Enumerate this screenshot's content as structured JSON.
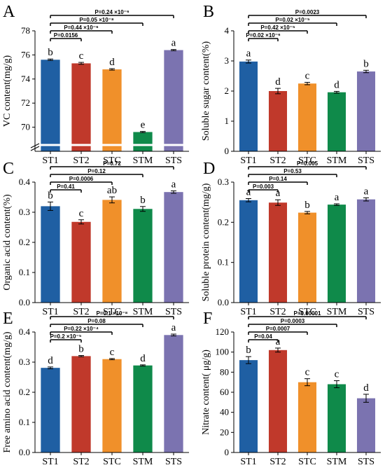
{
  "chart_data": [
    {
      "panel": "A",
      "type": "bar",
      "categories": [
        "ST1",
        "ST2",
        "STC",
        "STM",
        "STS"
      ],
      "values": [
        75.6,
        75.3,
        74.8,
        69.6,
        76.4
      ],
      "errors": [
        0.06,
        0.08,
        0.06,
        0.05,
        0.05
      ],
      "letters": [
        "b",
        "c",
        "d",
        "e",
        "a"
      ],
      "ylabel": "VC content(mg/g)",
      "ylim": [
        68,
        78
      ],
      "yticks": [
        "70",
        "72",
        "74",
        "76",
        "78"
      ],
      "axis_break": true,
      "comparisons": [
        {
          "target": 4,
          "label": "P=0.24 ×10⁻⁶"
        },
        {
          "target": 3,
          "label": "P=0.05 ×10⁻⁸"
        },
        {
          "target": 2,
          "label": "P=0.44 ×10⁻⁶"
        },
        {
          "target": 1,
          "label": "P=0.0156"
        }
      ]
    },
    {
      "panel": "B",
      "type": "bar",
      "categories": [
        "ST1",
        "ST2",
        "STC",
        "STM",
        "STS"
      ],
      "values": [
        2.98,
        2.0,
        2.25,
        1.96,
        2.65
      ],
      "errors": [
        0.05,
        0.09,
        0.04,
        0.03,
        0.04
      ],
      "letters": [
        "a",
        "d",
        "c",
        "d",
        "b"
      ],
      "ylabel": "Soluble sugar content(%)",
      "ylim": [
        0,
        4
      ],
      "yticks": [
        "0",
        "1",
        "2",
        "3",
        "4"
      ],
      "comparisons": [
        {
          "target": 4,
          "label": "P=0.0023"
        },
        {
          "target": 3,
          "label": "P=0.02 ×10⁻⁵"
        },
        {
          "target": 2,
          "label": "P=0.42 ×10⁻⁵"
        },
        {
          "target": 1,
          "label": "P=0.02 ×10⁻⁶"
        }
      ]
    },
    {
      "panel": "C",
      "type": "bar",
      "categories": [
        "ST1",
        "ST2",
        "STC",
        "STM",
        "STS"
      ],
      "values": [
        0.32,
        0.268,
        0.341,
        0.311,
        0.367
      ],
      "errors": [
        0.014,
        0.007,
        0.01,
        0.008,
        0.004
      ],
      "letters": [
        "b",
        "c",
        "ab",
        "b",
        "a"
      ],
      "ylabel": "Organic acid content(%)",
      "ylim": [
        0,
        0.4
      ],
      "yticks": [
        "0.0",
        "0.1",
        "0.2",
        "0.3",
        "0.4"
      ],
      "comparisons": [
        {
          "target": 4,
          "label": "P=0.72"
        },
        {
          "target": 3,
          "label": "P=0.12"
        },
        {
          "target": 2,
          "label": "P=0.0006"
        },
        {
          "target": 1,
          "label": "P=0.41"
        }
      ]
    },
    {
      "panel": "D",
      "type": "bar",
      "categories": [
        "ST1",
        "ST2",
        "STC",
        "STM",
        "STS"
      ],
      "values": [
        0.255,
        0.249,
        0.224,
        0.244,
        0.257
      ],
      "errors": [
        0.004,
        0.007,
        0.003,
        0.002,
        0.004
      ],
      "letters": [
        "a",
        "a",
        "b",
        "a",
        "a"
      ],
      "ylabel": "Soluble protein content(mg/g)",
      "ylim": [
        0,
        0.3
      ],
      "yticks": [
        "0.0",
        "0.1",
        "0.2",
        "0.3"
      ],
      "comparisons": [
        {
          "target": 4,
          "label": "P=0.005"
        },
        {
          "target": 3,
          "label": "P=0.53"
        },
        {
          "target": 2,
          "label": "P=0.14"
        },
        {
          "target": 1,
          "label": "P=0.003"
        }
      ]
    },
    {
      "panel": "E",
      "type": "bar",
      "categories": [
        "ST1",
        "ST2",
        "STC",
        "STM",
        "STS"
      ],
      "values": [
        0.281,
        0.32,
        0.31,
        0.289,
        0.39
      ],
      "errors": [
        0.003,
        0.002,
        0.002,
        0.002,
        0.003
      ],
      "letters": [
        "d",
        "b",
        "c",
        "d",
        "a"
      ],
      "ylabel": "Free amino acid content(mg/g)",
      "ylim": [
        0,
        0.4
      ],
      "yticks": [
        "0.0",
        "0.1",
        "0.2",
        "0.3",
        "0.4"
      ],
      "comparisons": [
        {
          "target": 4,
          "label": "P=0.1 ×10⁻⁸"
        },
        {
          "target": 3,
          "label": "P=0.08"
        },
        {
          "target": 2,
          "label": "P=0.22 ×10⁻⁴"
        },
        {
          "target": 1,
          "label": "P=0.2 ×10⁻⁵"
        }
      ]
    },
    {
      "panel": "F",
      "type": "bar",
      "categories": [
        "ST1",
        "ST2",
        "STC",
        "STM",
        "STS"
      ],
      "values": [
        92,
        102,
        70,
        68,
        54
      ],
      "errors": [
        3.5,
        2.0,
        3.5,
        3.5,
        4.0
      ],
      "letters": [
        "b",
        "a",
        "c",
        "c",
        "d"
      ],
      "ylabel": "Nitrate content( μg/g)",
      "ylim": [
        0,
        120
      ],
      "yticks": [
        "0",
        "20",
        "40",
        "60",
        "80",
        "100",
        "120"
      ],
      "comparisons": [
        {
          "target": 4,
          "label": "P=0.00001"
        },
        {
          "target": 3,
          "label": "P=0.0003"
        },
        {
          "target": 2,
          "label": "P=0.0007"
        },
        {
          "target": 1,
          "label": "P=0.04"
        }
      ]
    }
  ],
  "colors": [
    "#1f5fa3",
    "#c0392b",
    "#f0902a",
    "#0f8a4a",
    "#7b73b0"
  ]
}
